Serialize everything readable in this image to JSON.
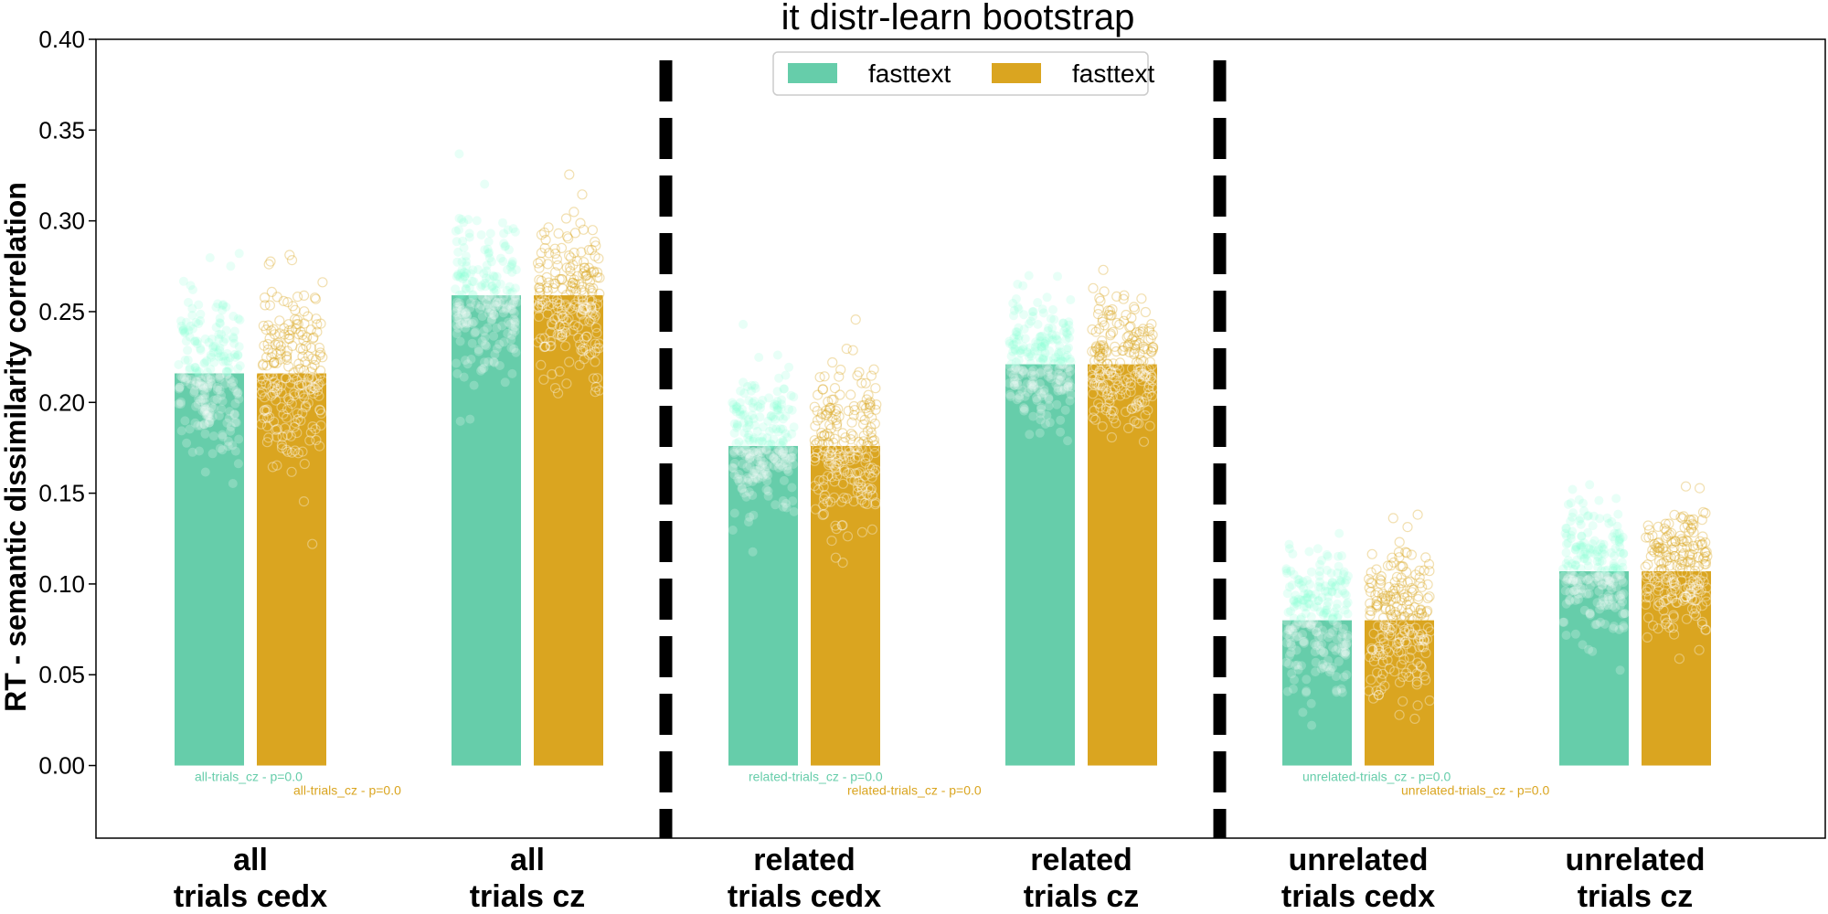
{
  "chart_data": {
    "type": "bar",
    "title": "it distr-learn bootstrap",
    "xlabel": "",
    "ylabel": "RT - semantic dissimilarity correlation",
    "ylim": [
      -0.04,
      0.4
    ],
    "yticks": [
      "0.00",
      "0.05",
      "0.10",
      "0.15",
      "0.20",
      "0.25",
      "0.30",
      "0.35",
      "0.40"
    ],
    "ytick_values": [
      0.0,
      0.05,
      0.1,
      0.15,
      0.2,
      0.25,
      0.3,
      0.35,
      0.4
    ],
    "categories": [
      [
        "all",
        "trials cedx"
      ],
      [
        "all",
        "trials cz"
      ],
      [
        "related",
        "trials cedx"
      ],
      [
        "related",
        "trials cz"
      ],
      [
        "unrelated",
        "trials cedx"
      ],
      [
        "unrelated",
        "trials cz"
      ]
    ],
    "series": [
      {
        "name": "fasttext",
        "color": "#66cdaa",
        "values": [
          0.216,
          0.259,
          0.176,
          0.221,
          0.08,
          0.107
        ]
      },
      {
        "name": "fasttext",
        "color": "#daa520",
        "values": [
          0.216,
          0.259,
          0.176,
          0.221,
          0.08,
          0.107
        ]
      }
    ],
    "bootstrap_spread": [
      {
        "center": 0.216,
        "spread": 0.055
      },
      {
        "center": 0.259,
        "spread": 0.045
      },
      {
        "center": 0.176,
        "spread": 0.045
      },
      {
        "center": 0.221,
        "spread": 0.04
      },
      {
        "center": 0.08,
        "spread": 0.045
      },
      {
        "center": 0.107,
        "spread": 0.04
      }
    ],
    "annotations": [
      {
        "text": "all-trials_cz - p=0.0",
        "series": 0,
        "category": 0
      },
      {
        "text": "all-trials_cz - p=0.0",
        "series": 1,
        "category": 0
      },
      {
        "text": "related-trials_cz - p=0.0",
        "series": 0,
        "category": 2
      },
      {
        "text": "related-trials_cz - p=0.0",
        "series": 1,
        "category": 2
      },
      {
        "text": "unrelated-trials_cz - p=0.0",
        "series": 0,
        "category": 4
      },
      {
        "text": "unrelated-trials_cz - p=0.0",
        "series": 1,
        "category": 4
      }
    ],
    "dividers_after_category": [
      1,
      3
    ],
    "legend": {
      "placement": "top-center",
      "columns": 2
    },
    "grid": false
  }
}
